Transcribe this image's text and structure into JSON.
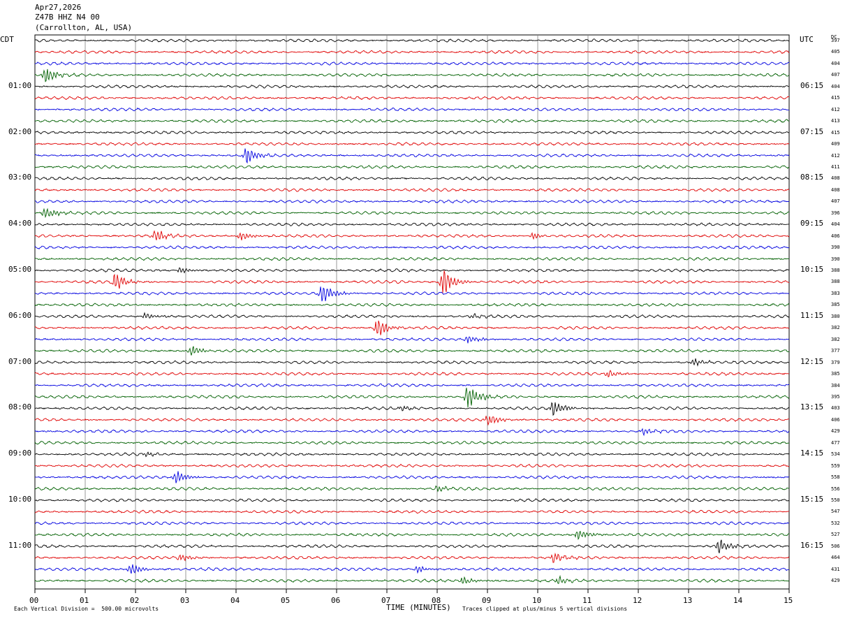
{
  "header": {
    "date": "Apr27,2026",
    "station": "Z47B HHZ N4 00",
    "location": "(Carrollton, AL, USA)"
  },
  "left_tz": "CDT",
  "right_tz": "UTC",
  "dc_label": "DC",
  "footer": {
    "scale": "Each Vertical Division =  500.00 microvolts",
    "xlabel": "TIME (MINUTES)",
    "clip_note": "Traces clipped at plus/minus 5 vertical divisions"
  },
  "chart_data": {
    "type": "line",
    "title": "Z47B HHZ N4 00 (Carrollton, AL, USA) Apr27,2026",
    "xlabel": "TIME (MINUTES)",
    "xlim": [
      0,
      15
    ],
    "x_ticks": [
      "00",
      "01",
      "02",
      "03",
      "04",
      "05",
      "06",
      "07",
      "08",
      "09",
      "10",
      "11",
      "12",
      "13",
      "14",
      "15"
    ],
    "left_hour_labels": [
      "01:00",
      "02:00",
      "03:00",
      "04:00",
      "05:00",
      "06:00",
      "07:00",
      "08:00",
      "09:00",
      "10:00",
      "11:00"
    ],
    "right_hour_labels": [
      "06:15",
      "07:15",
      "08:15",
      "09:15",
      "10:15",
      "11:15",
      "12:15",
      "13:15",
      "14:15",
      "15:15",
      "16:15"
    ],
    "trace_colors": [
      "#000000",
      "#e00000",
      "#0000e0",
      "#006000"
    ],
    "grid": true,
    "dc_offsets": [
      397,
      405,
      404,
      407,
      404,
      415,
      412,
      413,
      415,
      409,
      412,
      411,
      408,
      408,
      407,
      396,
      404,
      406,
      390,
      390,
      388,
      388,
      383,
      385,
      380,
      382,
      382,
      377,
      379,
      385,
      384,
      395,
      403,
      406,
      429,
      477,
      534,
      559,
      558,
      556,
      550,
      547,
      532,
      527,
      506,
      464,
      431,
      429
    ],
    "events": [
      {
        "trace": 3,
        "minute": 0.2,
        "amp": 1.3
      },
      {
        "trace": 10,
        "minute": 4.2,
        "amp": 1.4
      },
      {
        "trace": 15,
        "minute": 0.2,
        "amp": 1.0
      },
      {
        "trace": 17,
        "minute": 2.4,
        "amp": 1.0
      },
      {
        "trace": 17,
        "minute": 4.1,
        "amp": 0.7
      },
      {
        "trace": 17,
        "minute": 9.9,
        "amp": 0.5
      },
      {
        "trace": 20,
        "minute": 2.9,
        "amp": 0.4
      },
      {
        "trace": 21,
        "minute": 1.6,
        "amp": 1.3
      },
      {
        "trace": 21,
        "minute": 8.1,
        "amp": 2.0
      },
      {
        "trace": 22,
        "minute": 5.7,
        "amp": 1.6
      },
      {
        "trace": 24,
        "minute": 2.2,
        "amp": 0.6
      },
      {
        "trace": 24,
        "minute": 8.7,
        "amp": 0.4
      },
      {
        "trace": 25,
        "minute": 6.8,
        "amp": 1.4
      },
      {
        "trace": 26,
        "minute": 8.6,
        "amp": 0.7
      },
      {
        "trace": 27,
        "minute": 3.1,
        "amp": 0.8
      },
      {
        "trace": 28,
        "minute": 13.1,
        "amp": 0.6
      },
      {
        "trace": 29,
        "minute": 11.4,
        "amp": 0.5
      },
      {
        "trace": 31,
        "minute": 8.6,
        "amp": 2.0
      },
      {
        "trace": 32,
        "minute": 10.3,
        "amp": 1.3
      },
      {
        "trace": 32,
        "minute": 7.3,
        "amp": 0.4
      },
      {
        "trace": 33,
        "minute": 9.0,
        "amp": 1.0
      },
      {
        "trace": 34,
        "minute": 12.1,
        "amp": 0.5
      },
      {
        "trace": 36,
        "minute": 2.2,
        "amp": 0.4
      },
      {
        "trace": 38,
        "minute": 2.8,
        "amp": 1.0
      },
      {
        "trace": 39,
        "minute": 8.0,
        "amp": 0.5
      },
      {
        "trace": 43,
        "minute": 10.8,
        "amp": 0.8
      },
      {
        "trace": 44,
        "minute": 13.6,
        "amp": 1.2
      },
      {
        "trace": 45,
        "minute": 10.3,
        "amp": 0.9
      },
      {
        "trace": 45,
        "minute": 2.9,
        "amp": 0.6
      },
      {
        "trace": 46,
        "minute": 1.9,
        "amp": 0.9
      },
      {
        "trace": 46,
        "minute": 7.6,
        "amp": 0.6
      },
      {
        "trace": 47,
        "minute": 8.5,
        "amp": 0.6
      },
      {
        "trace": 47,
        "minute": 10.4,
        "amp": 0.6
      }
    ]
  }
}
